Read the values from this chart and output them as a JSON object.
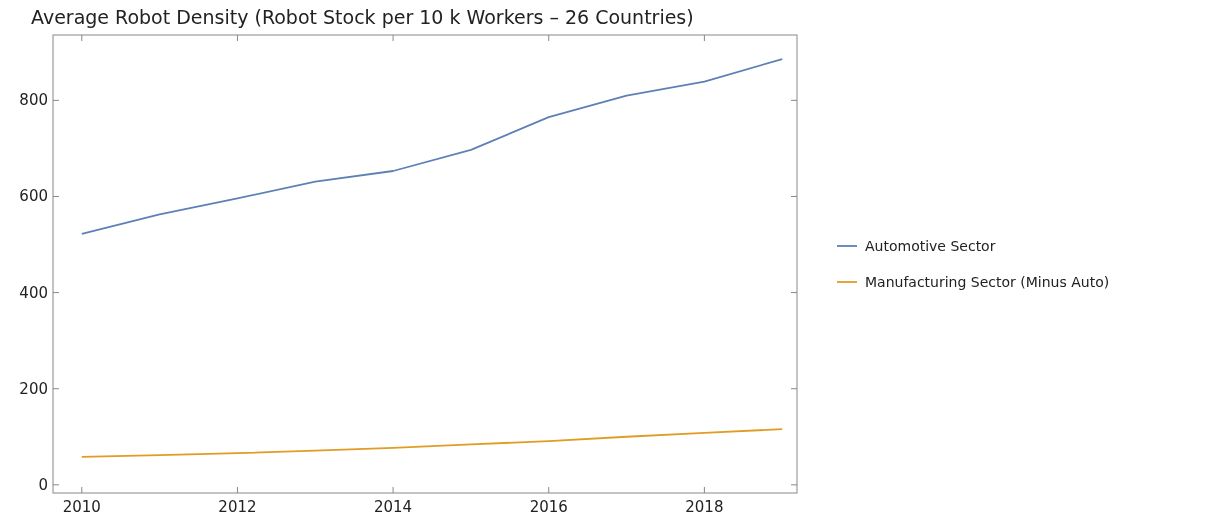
{
  "chart_data": {
    "type": "line",
    "title": "Average Robot Density (Robot Stock per 10 k Workers – 26 Countries)",
    "x": [
      2010,
      2011,
      2012,
      2013,
      2014,
      2015,
      2016,
      2017,
      2018,
      2019
    ],
    "series": [
      {
        "name": "Automotive Sector",
        "color": "#5e81b5",
        "values": [
          522,
          563,
          596,
          631,
          653,
          697,
          765,
          810,
          839,
          886
        ]
      },
      {
        "name": "Manufacturing Sector (Minus Auto)",
        "color": "#e19c24",
        "values": [
          58,
          62,
          66,
          71,
          77,
          84,
          91,
          100,
          108,
          116
        ]
      }
    ],
    "xlim": [
      2009.63,
      2019.19
    ],
    "xticks": [
      2010,
      2012,
      2014,
      2016,
      2018
    ],
    "ylim": [
      -17,
      936
    ],
    "yticks": [
      0,
      200,
      400,
      600,
      800
    ],
    "grid": false,
    "legend": "right",
    "marker": "none",
    "line_style": "solid"
  }
}
